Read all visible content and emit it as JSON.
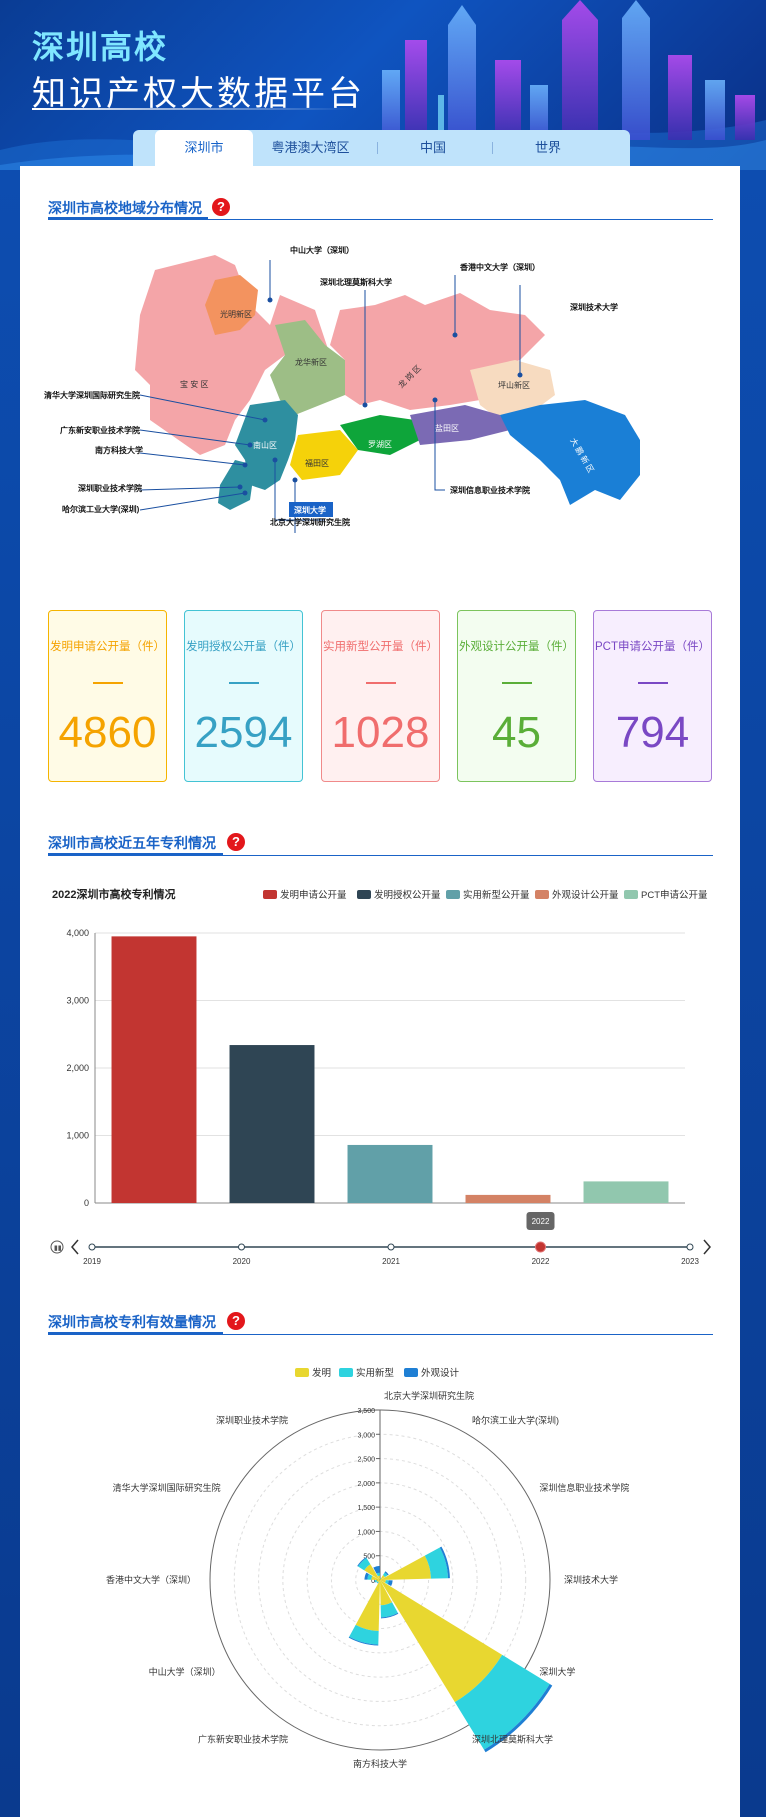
{
  "header": {
    "title_line1": "深圳高校",
    "title_line2": "知识产权大数据平台",
    "tabs": [
      {
        "label": "深圳市",
        "active": true
      },
      {
        "label": "粤港澳大湾区",
        "active": false
      },
      {
        "label": "中国",
        "active": false
      },
      {
        "label": "世界",
        "active": false
      }
    ]
  },
  "section_map": {
    "title": "深圳市高校地域分布情况",
    "help": "?",
    "districts": {
      "guangming": "光明新区",
      "baoan": "宝 安 区",
      "longhua": "龙华新区",
      "longgang": "龙 岗 区",
      "pingshan": "坪山新区",
      "nanshan": "南山区",
      "futian": "福田区",
      "luohu": "罗湖区",
      "yantian": "盐田区",
      "dapeng": "大 鹏 新 区"
    },
    "universities": {
      "sysu": "中山大学（深圳）",
      "msu_bit": "深圳北理莫斯科大学",
      "cuhk": "香港中文大学（深圳）",
      "sztu": "深圳技术大学",
      "tsinghua": "清华大学深圳国际研究生院",
      "gdxa": "广东新安职业技术学院",
      "sustech": "南方科技大学",
      "szpt": "深圳职业技术学院",
      "hit": "哈尔滨工业大学(深圳)",
      "szu": "深圳大学",
      "pku": "北京大学深圳研究生院",
      "sziit": "深圳信息职业技术学院"
    }
  },
  "stats": [
    {
      "label": "发明申请公开量（件）",
      "value": "4860",
      "color": "#f5a300",
      "bg": "#fffbe6",
      "border": "#f5b400"
    },
    {
      "label": "发明授权公开量（件）",
      "value": "2594",
      "color": "#37a1c4",
      "bg": "#e6fbfd",
      "border": "#43c3d4"
    },
    {
      "label": "实用新型公开量（件）",
      "value": "1028",
      "color": "#f06d6d",
      "bg": "#fff0f0",
      "border": "#f08a8a"
    },
    {
      "label": "外观设计公开量（件）",
      "value": "45",
      "color": "#5aae38",
      "bg": "#f3fdf0",
      "border": "#7cc45d"
    },
    {
      "label": "PCT申请公开量（件）",
      "value": "794",
      "color": "#7a48c4",
      "bg": "#f7eefe",
      "border": "#a87ad8"
    }
  ],
  "section_bar": {
    "title": "深圳市高校近五年专利情况",
    "help": "?"
  },
  "section_rose": {
    "title": "深圳市高校专利有效量情况",
    "help": "?"
  },
  "chart_data": [
    {
      "type": "bar",
      "title": "2022深圳市高校专利情况",
      "categories": [
        "发明申请公开量",
        "发明授权公开量",
        "实用新型公开量",
        "外观设计公开量",
        "PCT申请公开量"
      ],
      "values": [
        3950,
        2340,
        860,
        120,
        320
      ],
      "colors": [
        "#c23531",
        "#2f4554",
        "#61a0a8",
        "#d48265",
        "#91c7ae"
      ],
      "ylim": [
        0,
        4000
      ],
      "yticks": [
        "0",
        "1,000",
        "2,000",
        "3,000",
        "4,000"
      ],
      "grid": true,
      "legend": "top-right",
      "timeline": {
        "years": [
          "2019",
          "2020",
          "2021",
          "2022",
          "2023"
        ],
        "current": "2022"
      }
    },
    {
      "type": "bar",
      "subtype": "polar-rose",
      "legend": "top-center",
      "series": [
        {
          "name": "发明",
          "color": "#e8d730"
        },
        {
          "name": "实用新型",
          "color": "#2ed3df"
        },
        {
          "name": "外观设计",
          "color": "#1f7fd4"
        }
      ],
      "categories": [
        "北京大学深圳研究生院",
        "哈尔滨工业大学(深圳)",
        "深圳信息职业技术学院",
        "深圳技术大学",
        "深圳大学",
        "深圳北理莫斯科大学",
        "南方科技大学",
        "广东新安职业技术学院",
        "中山大学（深圳）",
        "香港中文大学（深圳）",
        "清华大学深圳国际研究生院",
        "深圳职业技术学院"
      ],
      "stack_values": [
        [
          20,
          15,
          5
        ],
        [
          120,
          60,
          30
        ],
        [
          1050,
          350,
          40
        ],
        [
          120,
          60,
          80
        ],
        [
          2950,
          1150,
          60
        ],
        [
          520,
          250,
          20
        ],
        [
          1050,
          280,
          20
        ],
        [
          50,
          30,
          5
        ],
        [
          70,
          40,
          5
        ],
        [
          180,
          80,
          60
        ],
        [
          380,
          150,
          20
        ],
        [
          90,
          60,
          140
        ]
      ],
      "rlim": [
        0,
        3500
      ],
      "rticks": [
        "0",
        "500",
        "1,000",
        "1,500",
        "2,000",
        "2,500",
        "3,000",
        "3,500"
      ]
    }
  ]
}
